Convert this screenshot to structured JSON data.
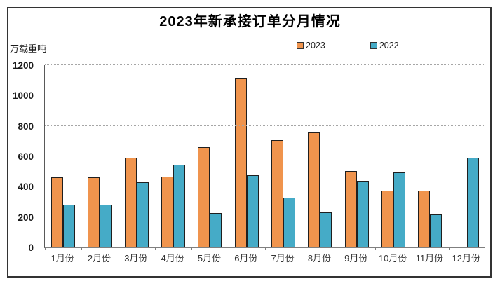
{
  "chart_data": {
    "type": "bar",
    "title": "2023年新承接订单分月情况",
    "ylabel": "万载重吨",
    "categories": [
      "1月份",
      "2月份",
      "3月份",
      "4月份",
      "5月份",
      "6月份",
      "7月份",
      "8月份",
      "9月份",
      "10月份",
      "11月份",
      "12月份"
    ],
    "series": [
      {
        "name": "2023",
        "color": "#F0944D",
        "values": [
          460,
          462,
          592,
          464,
          658,
          1118,
          708,
          756,
          502,
          372,
          376,
          null
        ]
      },
      {
        "name": "2022",
        "color": "#45ABC7",
        "values": [
          282,
          281,
          427,
          546,
          228,
          475,
          328,
          233,
          438,
          492,
          216,
          592
        ]
      }
    ],
    "ylim": [
      0,
      1200
    ],
    "yticks": [
      0,
      200,
      400,
      600,
      800,
      1000,
      1200
    ],
    "grid": true,
    "gridline_style": "dotted",
    "legend_position": "top-center",
    "bar_border_color": "#1F1F1F",
    "frame_border_color": "#333333"
  }
}
